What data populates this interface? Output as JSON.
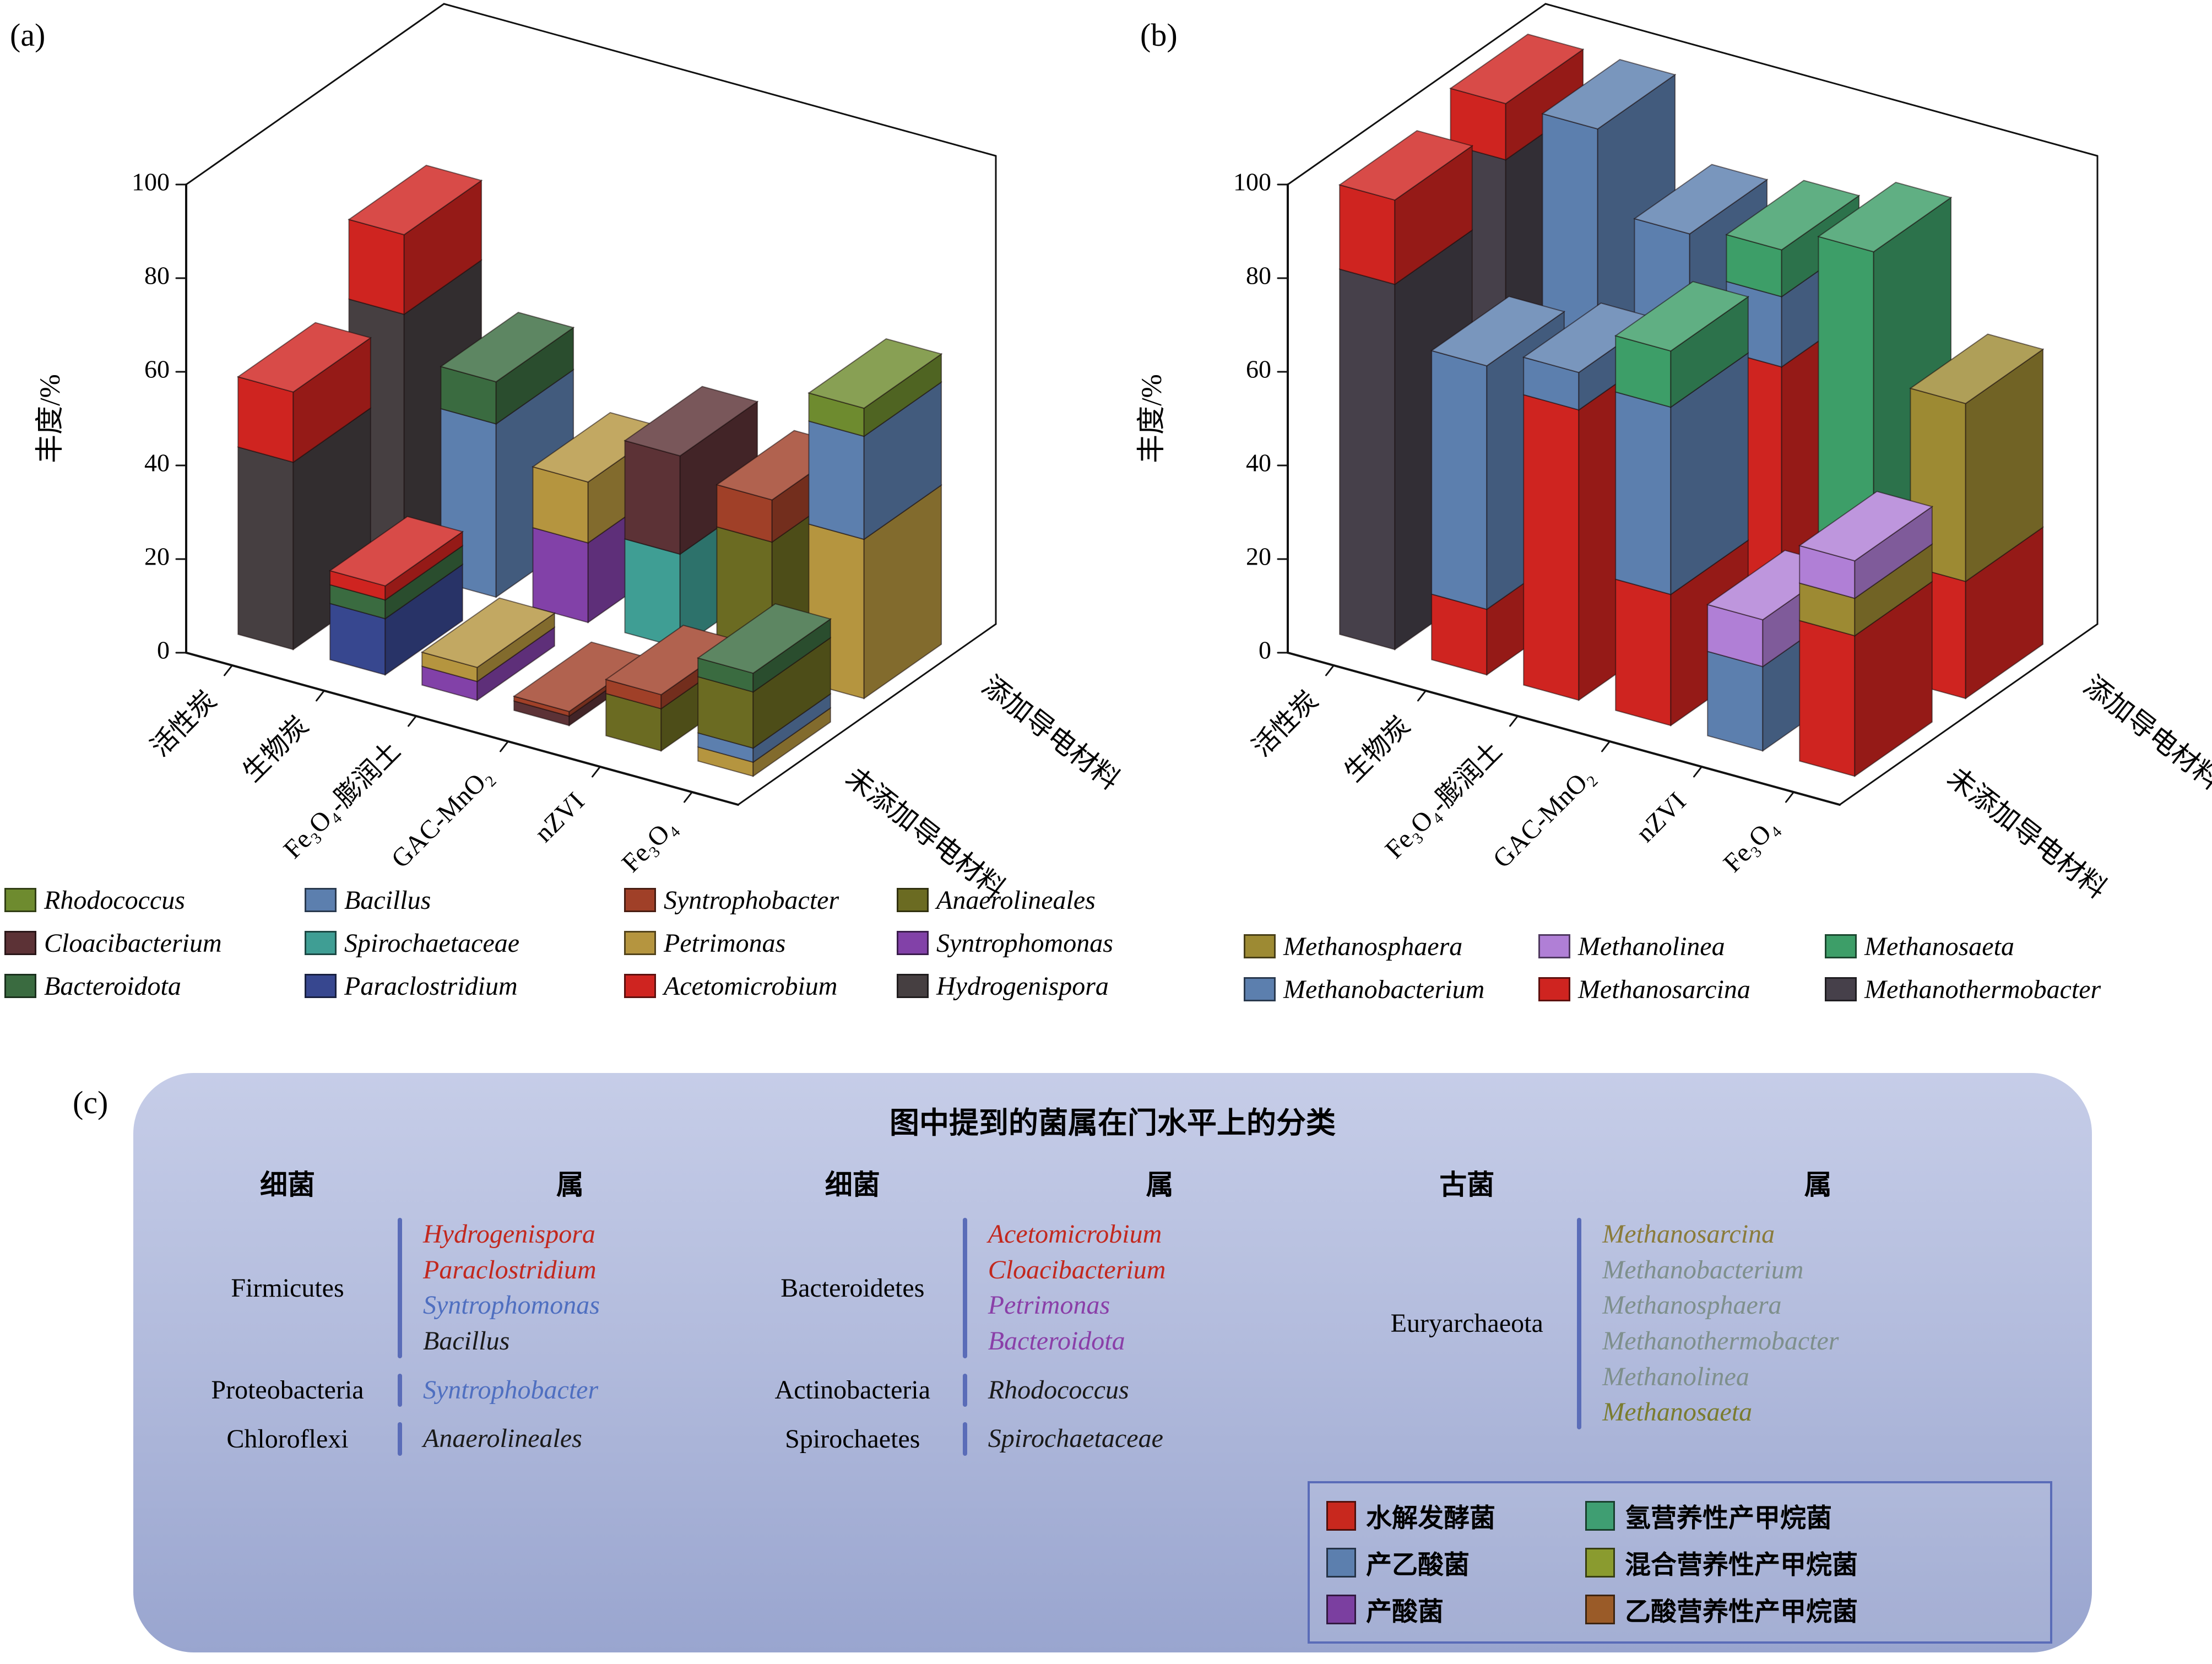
{
  "panels": {
    "a_label": "(a)",
    "b_label": "(b)",
    "c_label": "(c)"
  },
  "axis": {
    "y_label": "丰度/%",
    "y_ticks": [
      0,
      20,
      40,
      60,
      80,
      100
    ],
    "categories": [
      "活性炭",
      "生物炭",
      "Fe₃O₄-膨润土",
      "GAC-MnO₂",
      "nZVI",
      "Fe₃O₄"
    ],
    "depth_back": "添加导电材料",
    "depth_front": "未添加导电材料"
  },
  "colors": {
    "Rhodococcus": "#6e8b2f",
    "Cloacibacterium": "#5c3236",
    "Bacteroidota": "#3a6b40",
    "Bacillus": "#5c7fae",
    "Spirochaetaceae": "#3f9e94",
    "Paraclostridium": "#37478f",
    "Syntrophobacter": "#a04028",
    "Petrimonas": "#b5953f",
    "Acetomicrobium": "#cf2420",
    "Anaerolineales": "#6b6b22",
    "Syntrophomonas": "#8241a8",
    "Hydrogenispora": "#463f41",
    "Methanosphaera": "#9d8a33",
    "Methanobacterium": "#5c7fae",
    "Methanolinea": "#b07fd6",
    "Methanosarcina": "#cf2420",
    "Methanosaeta": "#3d9e68",
    "Methanothermobacter": "#46404a"
  },
  "chart_data": [
    {
      "id": "a",
      "type": "bar",
      "projection": "3d-stacked",
      "ylabel": "丰度/%",
      "ylim": [
        0,
        100
      ],
      "yticks": [
        0,
        20,
        40,
        60,
        80,
        100
      ],
      "categories": [
        "活性炭",
        "生物炭",
        "Fe₃O₄-膨润土",
        "GAC-MnO₂",
        "nZVI",
        "Fe₃O₄"
      ],
      "rows_back_to_front": [
        "添加导电材料",
        "未添加导电材料"
      ],
      "stacks": {
        "添加导电材料": [
          [
            [
              "Hydrogenispora",
              55
            ],
            [
              "Acetomicrobium",
              17
            ]
          ],
          [
            [
              "Bacillus",
              37
            ],
            [
              "Bacteroidota",
              9
            ]
          ],
          [
            [
              "Syntrophomonas",
              17
            ],
            [
              "Petrimonas",
              13
            ]
          ],
          [
            [
              "Spirochaetaceae",
              20
            ],
            [
              "Cloacibacterium",
              21
            ]
          ],
          [
            [
              "Anaerolineales",
              28
            ],
            [
              "Syntrophobacter",
              9
            ]
          ],
          [
            [
              "Petrimonas",
              34
            ],
            [
              "Bacillus",
              22
            ],
            [
              "Rhodococcus",
              6
            ]
          ]
        ],
        "未添加导电材料": [
          [
            [
              "Hydrogenispora",
              40
            ],
            [
              "Acetomicrobium",
              15
            ]
          ],
          [
            [
              "Paraclostridium",
              12
            ],
            [
              "Bacteroidota",
              4
            ],
            [
              "Acetomicrobium",
              3
            ]
          ],
          [
            [
              "Syntrophomonas",
              4
            ],
            [
              "Petrimonas",
              3
            ]
          ],
          [
            [
              "Cloacibacterium",
              2
            ],
            [
              "Syntrophobacter",
              1
            ]
          ],
          [
            [
              "Anaerolineales",
              9
            ],
            [
              "Syntrophobacter",
              3
            ]
          ],
          [
            [
              "Petrimonas",
              3
            ],
            [
              "Bacillus",
              3
            ],
            [
              "Anaerolineales",
              12
            ],
            [
              "Bacteroidota",
              4
            ]
          ]
        ]
      }
    },
    {
      "id": "b",
      "type": "bar",
      "projection": "3d-stacked",
      "ylabel": "丰度/%",
      "ylim": [
        0,
        100
      ],
      "yticks": [
        0,
        20,
        40,
        60,
        80,
        100
      ],
      "categories": [
        "活性炭",
        "生物炭",
        "Fe₃O₄-膨润土",
        "GAC-MnO₂",
        "nZVI",
        "Fe₃O₄"
      ],
      "rows_back_to_front": [
        "添加导电材料",
        "未添加导电材料"
      ],
      "stacks": {
        "添加导电材料": [
          [
            [
              "Methanothermobacter",
              88
            ],
            [
              "Methanosarcina",
              12
            ]
          ],
          [
            [
              "Methanosarcina",
              8
            ],
            [
              "Methanobacterium",
              92
            ]
          ],
          [
            [
              "Methanosarcina",
              35
            ],
            [
              "Methanobacterium",
              48
            ]
          ],
          [
            [
              "Methanosarcina",
              60
            ],
            [
              "Methanobacterium",
              15
            ],
            [
              "Methanosaeta",
              10
            ]
          ],
          [
            [
              "Methanosaeta",
              90
            ]
          ],
          [
            [
              "Methanosarcina",
              25
            ],
            [
              "Methanosphaera",
              38
            ]
          ]
        ],
        "未添加导电材料": [
          [
            [
              "Methanothermobacter",
              78
            ],
            [
              "Methanosarcina",
              18
            ]
          ],
          [
            [
              "Methanosarcina",
              14
            ],
            [
              "Methanobacterium",
              52
            ]
          ],
          [
            [
              "Methanosarcina",
              62
            ],
            [
              "Methanobacterium",
              8
            ]
          ],
          [
            [
              "Methanosarcina",
              28
            ],
            [
              "Methanobacterium",
              40
            ],
            [
              "Methanosaeta",
              12
            ]
          ],
          [
            [
              "Methanobacterium",
              18
            ],
            [
              "Methanolinea",
              10
            ]
          ],
          [
            [
              "Methanosarcina",
              30
            ],
            [
              "Methanosphaera",
              8
            ],
            [
              "Methanolinea",
              8
            ]
          ]
        ]
      }
    }
  ],
  "legend_a": {
    "columns": [
      [
        "Rhodococcus",
        "Cloacibacterium",
        "Bacteroidota"
      ],
      [
        "Bacillus",
        "Spirochaetaceae",
        "Paraclostridium"
      ],
      [
        "Syntrophobacter",
        "Petrimonas",
        "Acetomicrobium"
      ],
      [
        "Anaerolineales",
        "Syntrophomonas",
        "Hydrogenispora"
      ]
    ]
  },
  "legend_b": {
    "columns": [
      [
        "Methanosphaera",
        "Methanobacterium"
      ],
      [
        "Methanolinea",
        "Methanosarcina"
      ],
      [
        "Methanosaeta",
        "Methanothermobacter"
      ]
    ]
  },
  "panel_c": {
    "title": "图中提到的菌属在门水平上的分类",
    "groups": [
      {
        "header_phylum": "细菌",
        "header_genus": "属",
        "rows": [
          {
            "phylum": "Firmicutes",
            "genera": [
              {
                "name": "Hydrogenispora",
                "color": "#c2281e"
              },
              {
                "name": "Paraclostridium",
                "color": "#c2281e"
              },
              {
                "name": "Syntrophomonas",
                "color": "#4f6fc0"
              },
              {
                "name": "Bacillus",
                "color": "#1a1a1a"
              }
            ]
          },
          {
            "phylum": "Proteobacteria",
            "genera": [
              {
                "name": "Syntrophobacter",
                "color": "#4f6fc0"
              }
            ]
          },
          {
            "phylum": "Chloroflexi",
            "genera": [
              {
                "name": "Anaerolineales",
                "color": "#1a1a1a"
              }
            ]
          }
        ]
      },
      {
        "header_phylum": "细菌",
        "header_genus": "属",
        "rows": [
          {
            "phylum": "Bacteroidetes",
            "genera": [
              {
                "name": "Acetomicrobium",
                "color": "#c2281e"
              },
              {
                "name": "Cloacibacterium",
                "color": "#c2281e"
              },
              {
                "name": "Petrimonas",
                "color": "#8a3fa8"
              },
              {
                "name": "Bacteroidota",
                "color": "#8a3fa8"
              }
            ]
          },
          {
            "phylum": "Actinobacteria",
            "genera": [
              {
                "name": "Rhodococcus",
                "color": "#1a1a1a"
              }
            ]
          },
          {
            "phylum": "Spirochaetes",
            "genera": [
              {
                "name": "Spirochaetaceae",
                "color": "#1a1a1a"
              }
            ]
          }
        ]
      },
      {
        "header_phylum": "古菌",
        "header_genus": "属",
        "rows": [
          {
            "phylum": "Euryarchaeota",
            "genera": [
              {
                "name": "Methanosarcina",
                "color": "#8a7b3a"
              },
              {
                "name": "Methanobacterium",
                "color": "#7e8f8c"
              },
              {
                "name": "Methanosphaera",
                "color": "#7e8f8c"
              },
              {
                "name": "Methanothermobacter",
                "color": "#7e8f8c"
              },
              {
                "name": "Methanolinea",
                "color": "#7e8f8c"
              },
              {
                "name": "Methanosaeta",
                "color": "#7a7c2f"
              }
            ]
          }
        ]
      }
    ],
    "legend": {
      "items": [
        {
          "label": "水解发酵菌",
          "color": "#c8281e"
        },
        {
          "label": "氢营养性产甲烷菌",
          "color": "#3f9e72"
        },
        {
          "label": "产乙酸菌",
          "color": "#5c7fae"
        },
        {
          "label": "混合营养性产甲烷菌",
          "color": "#8a9b2f"
        },
        {
          "label": "产酸菌",
          "color": "#7b3fa0"
        },
        {
          "label": "乙酸营养性产甲烷菌",
          "color": "#9a5b28"
        }
      ]
    }
  }
}
